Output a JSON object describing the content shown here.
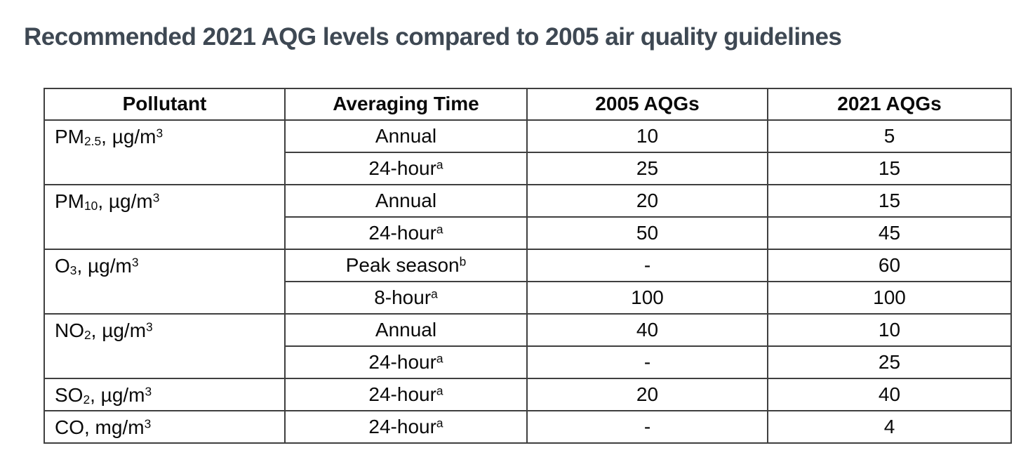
{
  "title": "Recommended 2021 AQG levels compared to 2005 air quality guidelines",
  "colors": {
    "title": "#3E4853",
    "border": "#3F3F3F",
    "text": "#0A0A0A",
    "background": "#FFFFFF"
  },
  "table": {
    "headers": [
      "Pollutant",
      "Averaging Time",
      "2005 AQGs",
      "2021 AQGs"
    ],
    "groups": [
      {
        "pollutant": {
          "text": "PM2.5, µg/m3",
          "parts": [
            {
              "t": "PM"
            },
            {
              "t": "2.5",
              "s": "sub"
            },
            {
              "t": ", µg/m"
            },
            {
              "t": "3",
              "s": "sup"
            }
          ]
        },
        "rows": [
          {
            "time": {
              "text": "Annual",
              "parts": [
                {
                  "t": "Annual"
                }
              ]
            },
            "aqg2005": "10",
            "aqg2021": "5"
          },
          {
            "time": {
              "text": "24-hour(a)",
              "parts": [
                {
                  "t": "24-hour"
                },
                {
                  "t": "a",
                  "s": "sup"
                }
              ]
            },
            "aqg2005": "25",
            "aqg2021": "15"
          }
        ]
      },
      {
        "pollutant": {
          "text": "PM10, µg/m3",
          "parts": [
            {
              "t": "PM"
            },
            {
              "t": "10",
              "s": "sub"
            },
            {
              "t": ", µg/m"
            },
            {
              "t": "3",
              "s": "sup"
            }
          ]
        },
        "rows": [
          {
            "time": {
              "text": "Annual",
              "parts": [
                {
                  "t": "Annual"
                }
              ]
            },
            "aqg2005": "20",
            "aqg2021": "15"
          },
          {
            "time": {
              "text": "24-hour(a)",
              "parts": [
                {
                  "t": "24-hour"
                },
                {
                  "t": "a",
                  "s": "sup"
                }
              ]
            },
            "aqg2005": "50",
            "aqg2021": "45"
          }
        ]
      },
      {
        "pollutant": {
          "text": "O3, µg/m3",
          "parts": [
            {
              "t": "O"
            },
            {
              "t": "3",
              "s": "sub"
            },
            {
              "t": ", µg/m"
            },
            {
              "t": "3",
              "s": "sup"
            }
          ]
        },
        "rows": [
          {
            "time": {
              "text": "Peak season(b)",
              "parts": [
                {
                  "t": "Peak season"
                },
                {
                  "t": "b",
                  "s": "sup"
                }
              ]
            },
            "aqg2005": "-",
            "aqg2021": "60"
          },
          {
            "time": {
              "text": "8-hour(a)",
              "parts": [
                {
                  "t": "8-hour"
                },
                {
                  "t": "a",
                  "s": "sup"
                }
              ]
            },
            "aqg2005": "100",
            "aqg2021": "100"
          }
        ]
      },
      {
        "pollutant": {
          "text": "NO2, µg/m3",
          "parts": [
            {
              "t": "NO"
            },
            {
              "t": "2",
              "s": "sub"
            },
            {
              "t": ", µg/m"
            },
            {
              "t": "3",
              "s": "sup"
            }
          ]
        },
        "rows": [
          {
            "time": {
              "text": "Annual",
              "parts": [
                {
                  "t": "Annual"
                }
              ]
            },
            "aqg2005": "40",
            "aqg2021": "10"
          },
          {
            "time": {
              "text": "24-hour(a)",
              "parts": [
                {
                  "t": "24-hour"
                },
                {
                  "t": "a",
                  "s": "sup"
                }
              ]
            },
            "aqg2005": "-",
            "aqg2021": "25"
          }
        ]
      },
      {
        "pollutant": {
          "text": "SO2, µg/m3",
          "parts": [
            {
              "t": "SO"
            },
            {
              "t": "2",
              "s": "sub"
            },
            {
              "t": ", µg/m"
            },
            {
              "t": "3",
              "s": "sup"
            }
          ]
        },
        "rows": [
          {
            "time": {
              "text": "24-hour(a)",
              "parts": [
                {
                  "t": "24-hour"
                },
                {
                  "t": "a",
                  "s": "sup"
                }
              ]
            },
            "aqg2005": "20",
            "aqg2021": "40"
          }
        ]
      },
      {
        "pollutant": {
          "text": "CO, mg/m3",
          "parts": [
            {
              "t": "CO, mg/m"
            },
            {
              "t": "3",
              "s": "sup"
            }
          ]
        },
        "rows": [
          {
            "time": {
              "text": "24-hour(a)",
              "parts": [
                {
                  "t": "24-hour"
                },
                {
                  "t": "a",
                  "s": "sup"
                }
              ]
            },
            "aqg2005": "-",
            "aqg2021": "4"
          }
        ]
      }
    ]
  }
}
